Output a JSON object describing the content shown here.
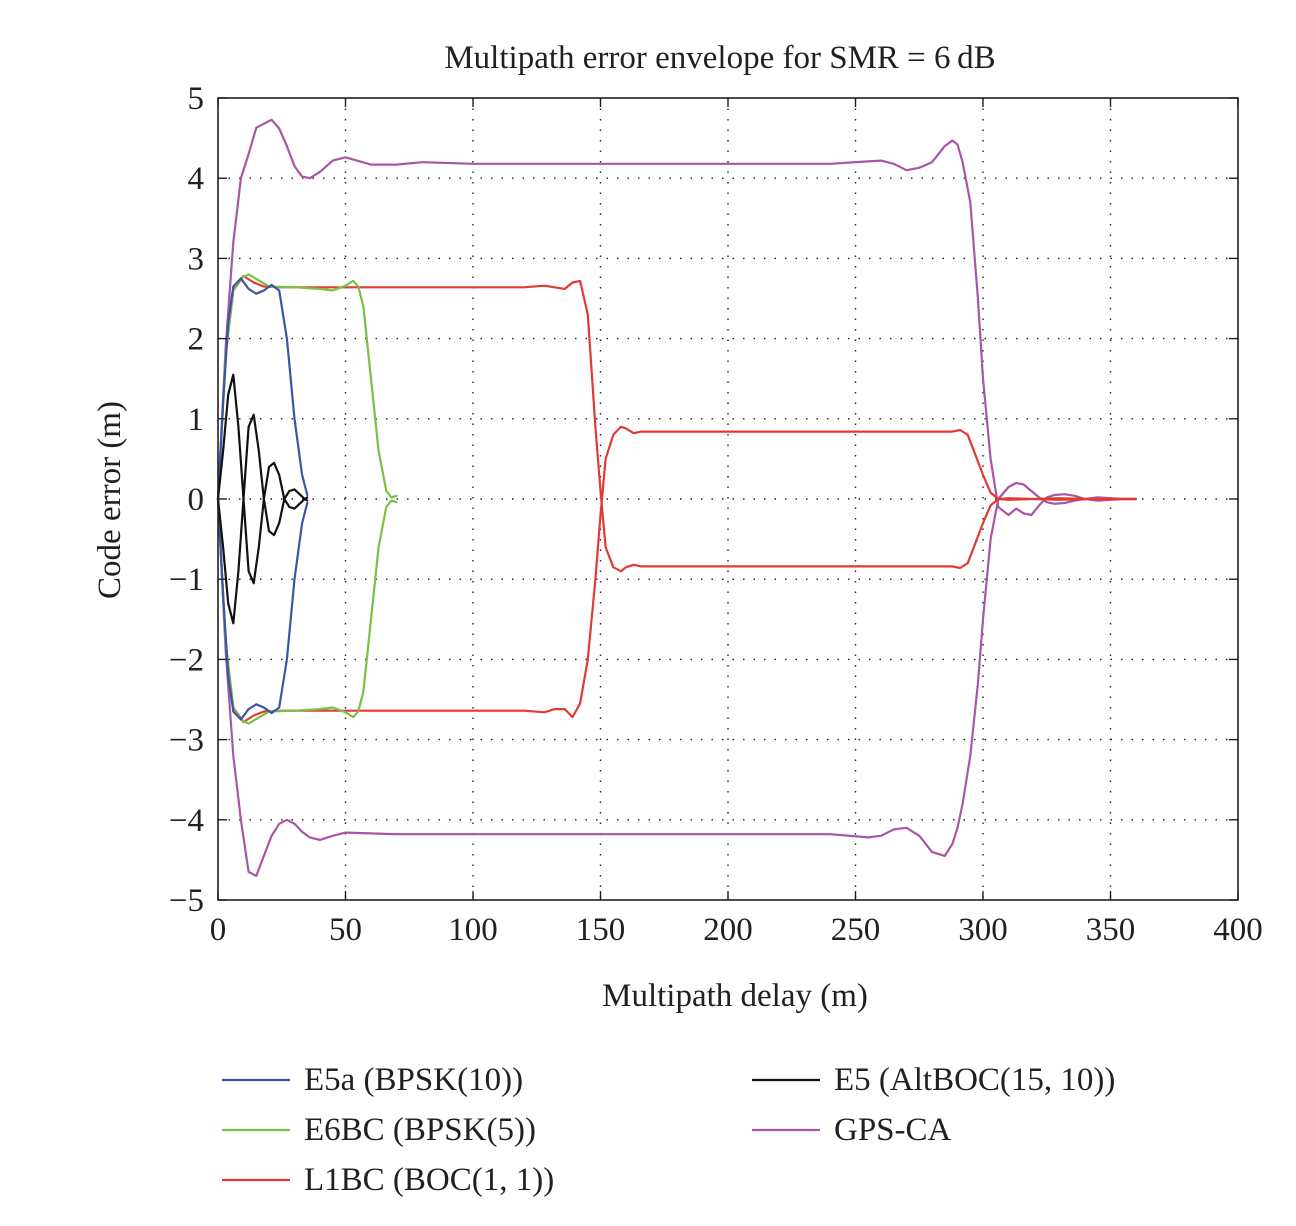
{
  "chart_data": {
    "type": "line",
    "title": "Multipath error envelope for SMR = 6 dB",
    "xlabel": "Multipath delay (m)",
    "ylabel": "Code error (m)",
    "xlim": [
      0,
      400
    ],
    "ylim": [
      -5,
      5
    ],
    "xticks": [
      0,
      50,
      100,
      150,
      200,
      250,
      300,
      350,
      400
    ],
    "yticks": [
      -5,
      -4,
      -3,
      -2,
      -1,
      0,
      1,
      2,
      3,
      4,
      5
    ],
    "xtick_labels": [
      "0",
      "50",
      "100",
      "150",
      "200",
      "250",
      "300",
      "350",
      "400"
    ],
    "ytick_labels": [
      "−5",
      "−4",
      "−3",
      "−2",
      "−1",
      "0",
      "1",
      "2",
      "3",
      "4",
      "5"
    ],
    "grid": "dotted",
    "legend_position": "below",
    "series": [
      {
        "name": "E5a (BPSK(10))",
        "color": "#3a55a4",
        "curves": [
          {
            "x": [
              0,
              2,
              4,
              6,
              9,
              12,
              15,
              18,
              21,
              24,
              27,
              30,
              33,
              35
            ],
            "y": [
              0,
              1.2,
              2.2,
              2.65,
              2.75,
              2.62,
              2.56,
              2.6,
              2.67,
              2.6,
              2.0,
              1.0,
              0.3,
              0.05
            ]
          },
          {
            "x": [
              0,
              2,
              4,
              6,
              9,
              12,
              15,
              18,
              21,
              24,
              27,
              30,
              33,
              35
            ],
            "y": [
              0,
              -1.2,
              -2.2,
              -2.65,
              -2.75,
              -2.62,
              -2.56,
              -2.6,
              -2.67,
              -2.6,
              -2.0,
              -1.0,
              -0.3,
              -0.05
            ]
          }
        ]
      },
      {
        "name": "E6BC (BPSK(5))",
        "color": "#7bbf45",
        "curves": [
          {
            "x": [
              0,
              3,
              6,
              9,
              12,
              20,
              30,
              40,
              45,
              50,
              53,
              55,
              57,
              60,
              63,
              66,
              68,
              70
            ],
            "y": [
              0,
              1.8,
              2.6,
              2.75,
              2.8,
              2.65,
              2.64,
              2.62,
              2.6,
              2.66,
              2.72,
              2.65,
              2.4,
              1.5,
              0.6,
              0.1,
              0.02,
              0.04
            ]
          },
          {
            "x": [
              0,
              3,
              6,
              9,
              12,
              20,
              30,
              40,
              45,
              50,
              53,
              55,
              57,
              60,
              63,
              66,
              68,
              70
            ],
            "y": [
              0,
              -1.8,
              -2.6,
              -2.75,
              -2.8,
              -2.65,
              -2.64,
              -2.62,
              -2.6,
              -2.66,
              -2.72,
              -2.65,
              -2.4,
              -1.5,
              -0.6,
              -0.1,
              -0.02,
              -0.04
            ]
          }
        ]
      },
      {
        "name": "L1BC (BOC(1, 1))",
        "color": "#e03b32",
        "curves": [
          {
            "x": [
              0,
              3,
              6,
              10,
              14,
              18,
              25,
              35,
              50,
              70,
              100,
              120,
              128,
              132,
              136,
              139,
              142,
              145,
              148,
              150,
              152,
              155,
              158,
              160,
              163,
              166,
              170,
              175,
              180,
              200,
              250,
              280,
              288,
              291,
              294,
              297,
              300,
              303,
              306,
              310,
              320,
              330,
              340,
              350,
              360
            ],
            "y": [
              0,
              1.8,
              2.6,
              2.78,
              2.7,
              2.65,
              2.64,
              2.64,
              2.64,
              2.64,
              2.64,
              2.64,
              2.66,
              2.64,
              2.62,
              2.7,
              2.72,
              2.3,
              0.9,
              0.1,
              -0.6,
              -0.85,
              -0.9,
              -0.85,
              -0.82,
              -0.84,
              -0.84,
              -0.84,
              -0.84,
              -0.84,
              -0.84,
              -0.84,
              -0.84,
              -0.86,
              -0.8,
              -0.55,
              -0.3,
              -0.08,
              0.0,
              -0.01,
              0.0,
              0.01,
              0.0,
              0.0,
              0.0
            ]
          },
          {
            "x": [
              0,
              3,
              6,
              10,
              14,
              18,
              25,
              35,
              50,
              70,
              100,
              120,
              128,
              132,
              136,
              139,
              142,
              145,
              148,
              150,
              152,
              155,
              158,
              160,
              163,
              166,
              170,
              175,
              180,
              200,
              250,
              280,
              288,
              291,
              294,
              297,
              300,
              303,
              306,
              310,
              320,
              330,
              340,
              350,
              360
            ],
            "y": [
              0,
              -1.8,
              -2.6,
              -2.78,
              -2.7,
              -2.65,
              -2.64,
              -2.64,
              -2.64,
              -2.64,
              -2.64,
              -2.64,
              -2.66,
              -2.62,
              -2.62,
              -2.72,
              -2.55,
              -2.0,
              -1.0,
              -0.2,
              0.5,
              0.8,
              0.9,
              0.88,
              0.82,
              0.84,
              0.84,
              0.84,
              0.84,
              0.84,
              0.84,
              0.84,
              0.84,
              0.86,
              0.8,
              0.55,
              0.3,
              0.08,
              0.0,
              0.01,
              0.0,
              -0.01,
              0.0,
              0.0,
              0.0
            ]
          }
        ]
      },
      {
        "name": "E5 (AltBOC(15, 10))",
        "color": "#111111",
        "curves": [
          {
            "x": [
              0,
              2,
              4,
              6,
              8,
              10,
              12,
              14,
              16,
              18,
              20,
              22,
              24,
              26,
              28,
              30,
              32,
              34,
              35
            ],
            "y": [
              0,
              0.6,
              1.3,
              1.55,
              0.9,
              0.0,
              -0.9,
              -1.05,
              -0.6,
              0.0,
              0.4,
              0.45,
              0.3,
              0.0,
              -0.1,
              -0.12,
              -0.06,
              0.0,
              0.02
            ]
          },
          {
            "x": [
              0,
              2,
              4,
              6,
              8,
              10,
              12,
              14,
              16,
              18,
              20,
              22,
              24,
              26,
              28,
              30,
              32,
              34,
              35
            ],
            "y": [
              0,
              -0.6,
              -1.3,
              -1.55,
              -0.9,
              0.0,
              0.9,
              1.05,
              0.6,
              0.0,
              -0.4,
              -0.45,
              -0.3,
              0.0,
              0.1,
              0.12,
              0.06,
              0.0,
              -0.02
            ]
          }
        ]
      },
      {
        "name": "GPS-CA",
        "color": "#a955a6",
        "curves": [
          {
            "x": [
              0,
              3,
              6,
              9,
              12,
              15,
              18,
              21,
              24,
              27,
              30,
              33,
              36,
              40,
              45,
              50,
              60,
              70,
              80,
              100,
              150,
              200,
              240,
              255,
              260,
              265,
              270,
              275,
              280,
              285,
              288,
              290,
              292,
              295,
              298,
              300,
              303,
              306,
              310,
              313,
              316,
              319,
              322,
              325,
              328,
              332,
              336,
              340,
              345,
              350,
              355,
              360
            ],
            "y": [
              0,
              1.9,
              3.2,
              4.0,
              4.3,
              4.63,
              4.68,
              4.73,
              4.62,
              4.4,
              4.15,
              4.02,
              4.0,
              4.08,
              4.22,
              4.26,
              4.17,
              4.17,
              4.2,
              4.18,
              4.18,
              4.18,
              4.18,
              4.21,
              4.22,
              4.18,
              4.1,
              4.13,
              4.2,
              4.4,
              4.47,
              4.42,
              4.2,
              3.7,
              2.5,
              1.5,
              0.5,
              -0.1,
              -0.2,
              -0.12,
              -0.18,
              -0.2,
              -0.08,
              0.02,
              0.05,
              0.06,
              0.04,
              0.0,
              -0.02,
              -0.01,
              0.0,
              0.0
            ]
          },
          {
            "x": [
              0,
              3,
              6,
              9,
              12,
              15,
              18,
              21,
              24,
              27,
              30,
              33,
              36,
              40,
              45,
              50,
              60,
              70,
              80,
              100,
              150,
              200,
              240,
              255,
              260,
              265,
              270,
              275,
              280,
              285,
              288,
              290,
              292,
              295,
              298,
              300,
              303,
              306,
              310,
              313,
              316,
              319,
              322,
              325,
              328,
              332,
              336,
              340,
              345,
              350,
              355,
              360
            ],
            "y": [
              0,
              -1.9,
              -3.2,
              -4.0,
              -4.65,
              -4.7,
              -4.45,
              -4.2,
              -4.05,
              -4.0,
              -4.05,
              -4.15,
              -4.22,
              -4.25,
              -4.2,
              -4.16,
              -4.17,
              -4.18,
              -4.18,
              -4.18,
              -4.18,
              -4.18,
              -4.18,
              -4.22,
              -4.2,
              -4.12,
              -4.1,
              -4.2,
              -4.4,
              -4.45,
              -4.3,
              -4.1,
              -3.8,
              -3.2,
              -2.3,
              -1.5,
              -0.5,
              0.0,
              0.15,
              0.2,
              0.18,
              0.1,
              0.02,
              -0.04,
              -0.06,
              -0.05,
              -0.02,
              0.0,
              0.02,
              0.01,
              0.0,
              0.0
            ]
          }
        ]
      }
    ]
  }
}
